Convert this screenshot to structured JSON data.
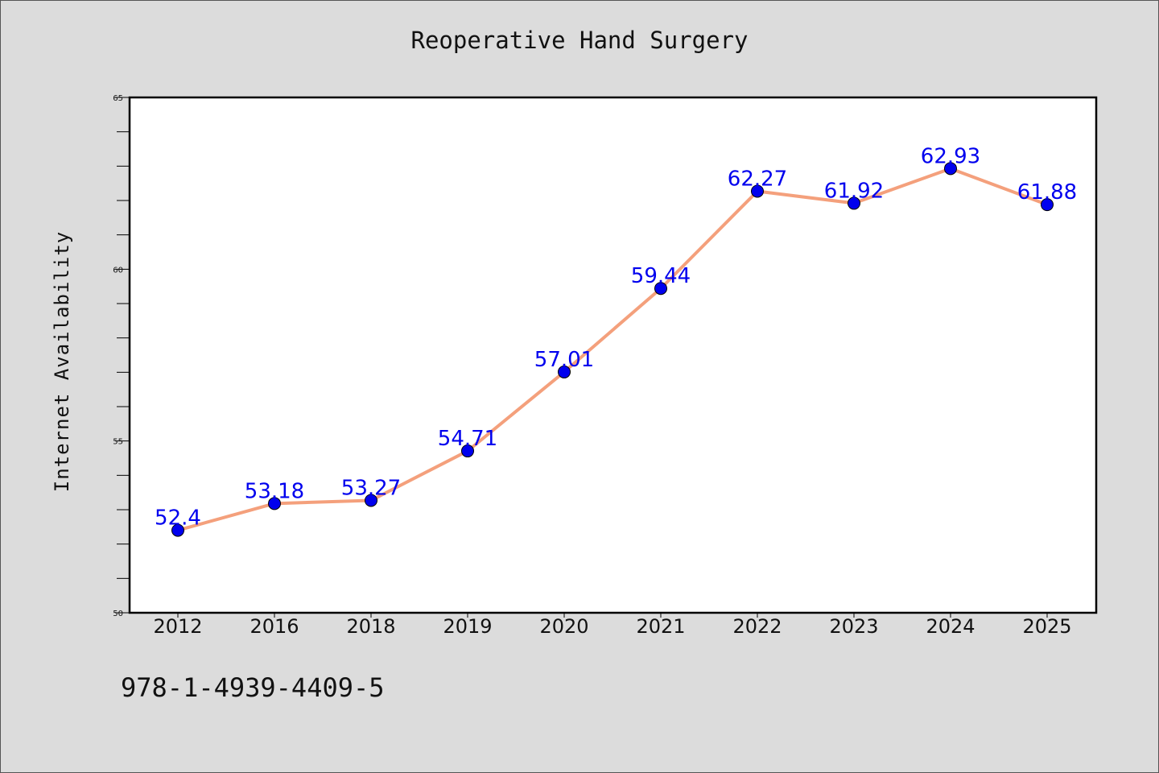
{
  "chart_data": {
    "type": "line",
    "title": "Reoperative Hand Surgery",
    "xlabel": "",
    "ylabel": "Internet Availability",
    "categories": [
      "2012",
      "2016",
      "2018",
      "2019",
      "2020",
      "2021",
      "2022",
      "2023",
      "2024",
      "2025"
    ],
    "values": [
      52.4,
      53.18,
      53.27,
      54.71,
      57.01,
      59.44,
      62.27,
      61.92,
      62.93,
      61.88
    ],
    "data_labels": [
      "52.4",
      "53.18",
      "53.27",
      "54.71",
      "57.01",
      "59.44",
      "62.27",
      "61.92",
      "62.93",
      "61.88"
    ],
    "ylim": [
      50,
      65
    ],
    "yticks": [
      "50",
      "55",
      "60",
      "65"
    ],
    "grid": false,
    "line_color": "#f4a07c",
    "marker_color": "#0000ee",
    "label_color": "#0000ee",
    "background_color": "#dcdcdc",
    "plot_background": "#ffffff"
  },
  "annotation": {
    "isbn": "978-1-4939-4409-5"
  }
}
